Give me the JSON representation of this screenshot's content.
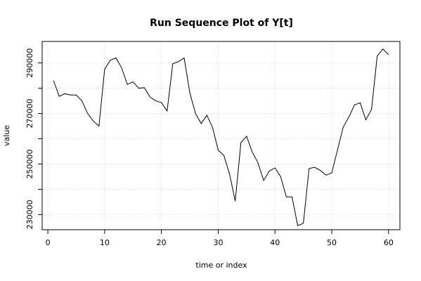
{
  "chart_data": {
    "type": "line",
    "title": "Run Sequence Plot of Y[t]",
    "xlabel": "time or index",
    "ylabel": "value",
    "xlim": [
      -1,
      62
    ],
    "ylim": [
      224000,
      298500
    ],
    "x_ticks": [
      0,
      10,
      20,
      30,
      40,
      50,
      60
    ],
    "x_tick_labels": [
      "0",
      "10",
      "20",
      "30",
      "40",
      "50",
      "60"
    ],
    "y_ticks": [
      230000,
      240000,
      250000,
      260000,
      270000,
      280000,
      290000
    ],
    "y_tick_labels": [
      "230000",
      "",
      "250000",
      "",
      "270000",
      "",
      "290000"
    ],
    "grid": true,
    "series": [
      {
        "x": [
          1,
          2,
          3,
          4,
          5,
          6,
          7,
          8,
          9,
          10,
          11,
          12,
          13,
          14,
          15,
          16,
          17,
          18,
          19,
          20,
          21,
          22,
          23,
          24,
          25,
          26,
          27,
          28,
          29,
          30,
          31,
          32,
          33,
          34,
          35,
          36,
          37,
          38,
          39,
          40,
          41,
          42,
          43,
          44,
          45,
          46,
          47,
          48,
          49,
          50,
          51,
          52,
          53,
          54,
          55,
          56,
          57,
          58,
          59,
          60
        ],
        "values": [
          283000,
          276800,
          277800,
          277300,
          277300,
          275000,
          270000,
          267000,
          265000,
          287500,
          291100,
          292000,
          288000,
          281500,
          282500,
          280000,
          280200,
          276500,
          275000,
          274300,
          271000,
          289700,
          290500,
          292000,
          278200,
          270000,
          266000,
          269300,
          264500,
          255500,
          253400,
          246000,
          235300,
          258500,
          261000,
          254700,
          250500,
          243500,
          247200,
          248500,
          245000,
          237000,
          237000,
          225600,
          226600,
          248200,
          248700,
          247400,
          245600,
          246500,
          255500,
          264500,
          268600,
          273400,
          274200,
          267500,
          271600,
          292700,
          295500,
          293300
        ]
      }
    ]
  }
}
